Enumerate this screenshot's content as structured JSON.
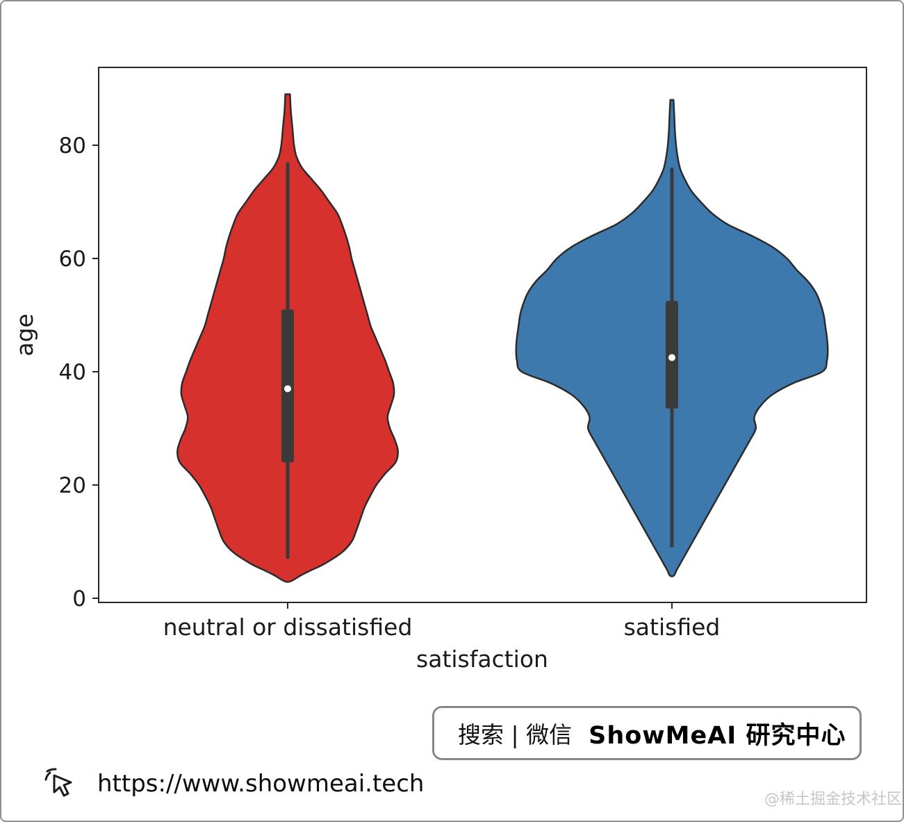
{
  "branding": {
    "search_prefix": "搜索 | 微信",
    "search_brand": "ShowMeAI 研究中心",
    "url": "https://www.showmeai.tech",
    "community": "@稀土掘金技术社区"
  },
  "chart_data": {
    "type": "violin",
    "title": "",
    "xlabel": "satisfaction",
    "ylabel": "age",
    "categories": [
      "neutral or dissatisfied",
      "satisfied"
    ],
    "yticks": [
      0,
      20,
      40,
      60,
      80
    ],
    "ylim": [
      -2,
      92
    ],
    "grid": false,
    "legend": "none",
    "violins": [
      {
        "category": "neutral or dissatisfied",
        "color": "#d7312e",
        "outline_color": "#2b2b2b",
        "stats": {
          "whisker_low": 7,
          "q1": 24,
          "median": 37,
          "q3": 51,
          "whisker_high": 77
        },
        "age_range": [
          3,
          89
        ],
        "profile": [
          [
            89,
            0.015
          ],
          [
            86,
            0.02
          ],
          [
            83,
            0.03
          ],
          [
            80,
            0.04
          ],
          [
            78,
            0.055
          ],
          [
            76,
            0.09
          ],
          [
            74,
            0.15
          ],
          [
            72,
            0.21
          ],
          [
            70,
            0.26
          ],
          [
            68,
            0.31
          ],
          [
            66,
            0.34
          ],
          [
            64,
            0.365
          ],
          [
            62,
            0.385
          ],
          [
            60,
            0.4
          ],
          [
            58,
            0.42
          ],
          [
            56,
            0.44
          ],
          [
            54,
            0.46
          ],
          [
            52,
            0.48
          ],
          [
            50,
            0.5
          ],
          [
            48,
            0.52
          ],
          [
            46,
            0.55
          ],
          [
            44,
            0.58
          ],
          [
            42,
            0.61
          ],
          [
            40,
            0.635
          ],
          [
            38,
            0.66
          ],
          [
            36,
            0.665
          ],
          [
            34,
            0.645
          ],
          [
            32,
            0.625
          ],
          [
            30,
            0.64
          ],
          [
            28,
            0.67
          ],
          [
            26,
            0.69
          ],
          [
            24,
            0.675
          ],
          [
            22,
            0.61
          ],
          [
            20,
            0.555
          ],
          [
            18,
            0.515
          ],
          [
            16,
            0.48
          ],
          [
            14,
            0.455
          ],
          [
            12,
            0.43
          ],
          [
            10,
            0.4
          ],
          [
            8,
            0.335
          ],
          [
            6,
            0.225
          ],
          [
            5,
            0.15
          ],
          [
            4,
            0.08
          ],
          [
            3,
            0.02
          ]
        ]
      },
      {
        "category": "satisfied",
        "color": "#3d79ad",
        "outline_color": "#2b2b2b",
        "stats": {
          "whisker_low": 9,
          "q1": 33.5,
          "median": 42.5,
          "q3": 52.5,
          "whisker_high": 76
        },
        "age_range": [
          4,
          88
        ],
        "profile": [
          [
            88,
            0.01
          ],
          [
            85,
            0.015
          ],
          [
            82,
            0.02
          ],
          [
            79,
            0.03
          ],
          [
            76,
            0.05
          ],
          [
            74,
            0.08
          ],
          [
            72,
            0.12
          ],
          [
            70,
            0.18
          ],
          [
            68,
            0.25
          ],
          [
            66,
            0.35
          ],
          [
            64,
            0.5
          ],
          [
            62,
            0.63
          ],
          [
            60,
            0.72
          ],
          [
            58,
            0.78
          ],
          [
            56,
            0.85
          ],
          [
            54,
            0.9
          ],
          [
            52,
            0.93
          ],
          [
            50,
            0.95
          ],
          [
            48,
            0.96
          ],
          [
            46,
            0.97
          ],
          [
            44,
            0.975
          ],
          [
            42,
            0.97
          ],
          [
            40,
            0.94
          ],
          [
            38,
            0.76
          ],
          [
            36,
            0.63
          ],
          [
            34,
            0.555
          ],
          [
            32,
            0.515
          ],
          [
            30,
            0.525
          ],
          [
            28,
            0.49
          ],
          [
            26,
            0.45
          ],
          [
            24,
            0.41
          ],
          [
            22,
            0.37
          ],
          [
            20,
            0.33
          ],
          [
            18,
            0.29
          ],
          [
            16,
            0.25
          ],
          [
            14,
            0.21
          ],
          [
            12,
            0.17
          ],
          [
            10,
            0.13
          ],
          [
            8,
            0.09
          ],
          [
            6,
            0.05
          ],
          [
            5,
            0.03
          ],
          [
            4,
            0.012
          ]
        ]
      }
    ]
  }
}
